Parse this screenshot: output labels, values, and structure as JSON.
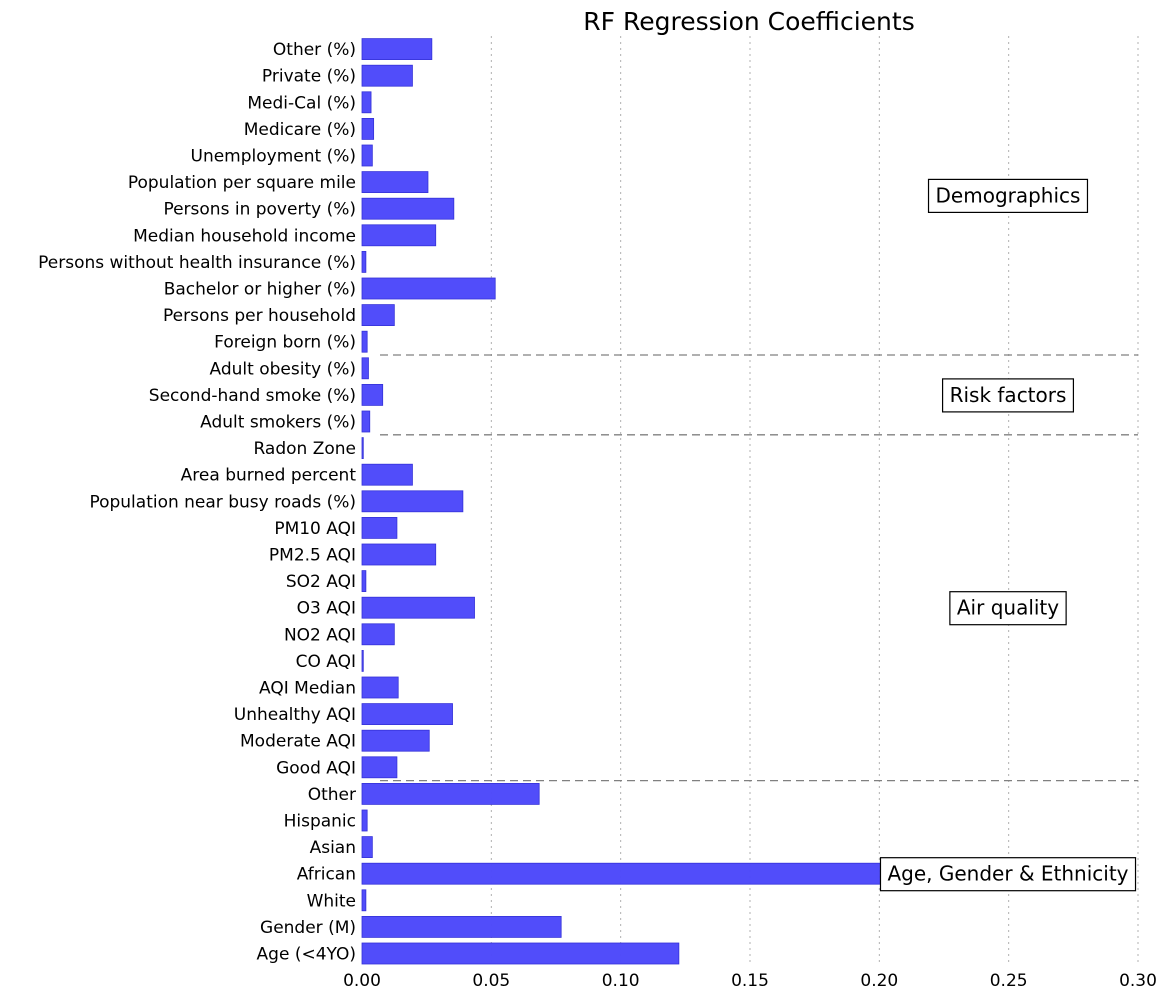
{
  "chart_data": {
    "type": "bar",
    "orientation": "horizontal",
    "title": "RF Regression Coefficients",
    "xlim": [
      0,
      0.3
    ],
    "xticks": [
      "0.00",
      "0.05",
      "0.10",
      "0.15",
      "0.20",
      "0.25",
      "0.30"
    ],
    "xtick_values": [
      0,
      0.05,
      0.1,
      0.15,
      0.2,
      0.25,
      0.3
    ],
    "grid": "vertical dotted",
    "bar_color": "#4b47fa",
    "categories": [
      "Age (<4YO)",
      "Gender (M)",
      "White",
      "African",
      "Asian",
      "Hispanic",
      "Other",
      "Good AQI",
      "Moderate AQI",
      "Unhealthy AQI",
      "AQI Median",
      "CO AQI",
      "NO2 AQI",
      "O3 AQI",
      "SO2 AQI",
      "PM2.5 AQI",
      "PM10 AQI",
      "Population near busy roads (%)",
      "Area burned percent",
      "Radon Zone",
      "Adult smokers (%)",
      "Second-hand smoke (%)",
      "Adult obesity (%)",
      "Foreign born (%)",
      "Persons per household",
      "Bachelor or higher (%)",
      "Persons without health insurance (%)",
      "Median household income",
      "Persons in poverty (%)",
      "Population per square mile",
      "Unemployment (%)",
      "Medicare (%)",
      "Medi-Cal (%)",
      "Private (%)",
      "Other (%)"
    ],
    "values": [
      0.1225,
      0.077,
      0.0015,
      0.252,
      0.004,
      0.002,
      0.0685,
      0.0135,
      0.026,
      0.035,
      0.014,
      0.0005,
      0.0125,
      0.0435,
      0.0015,
      0.0285,
      0.0135,
      0.039,
      0.0195,
      0.0005,
      0.003,
      0.008,
      0.0025,
      0.002,
      0.0125,
      0.0515,
      0.0015,
      0.0285,
      0.0355,
      0.0255,
      0.004,
      0.0045,
      0.0035,
      0.0195,
      0.027
    ],
    "groups": [
      {
        "name": "Age, Gender & Ethnicity",
        "count": 7
      },
      {
        "name": "Air quality",
        "count": 13
      },
      {
        "name": "Risk factors",
        "count": 3
      },
      {
        "name": "Demographics",
        "count": 12
      }
    ]
  }
}
